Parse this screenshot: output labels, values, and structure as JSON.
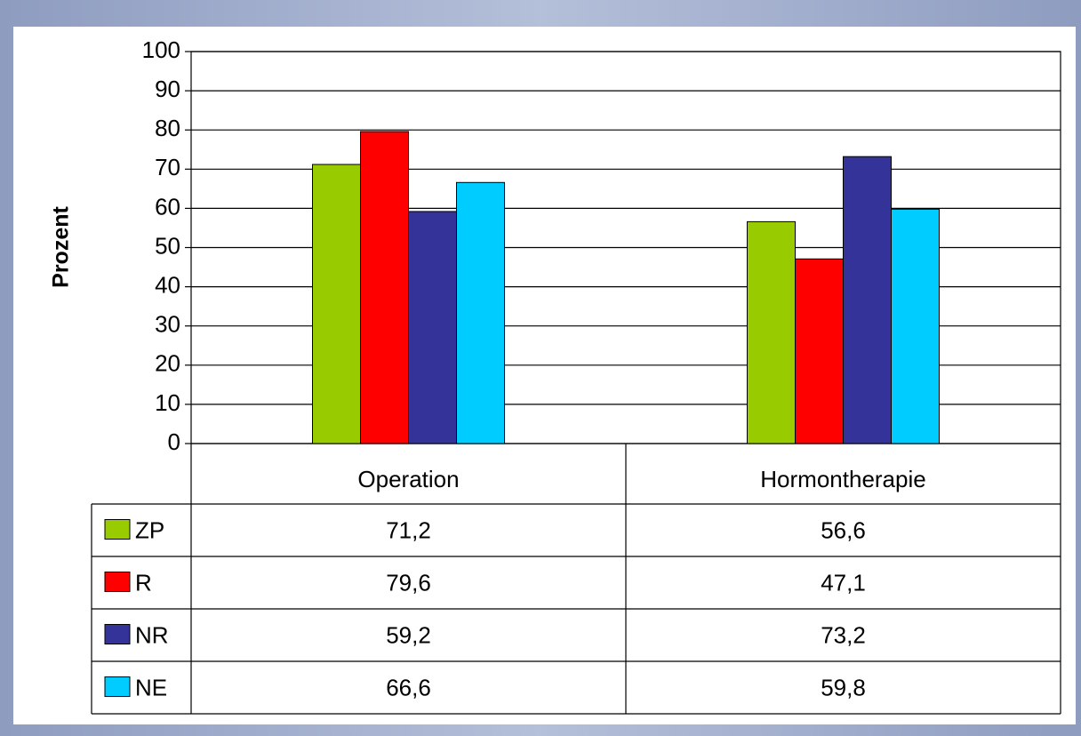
{
  "chart_data": {
    "type": "bar",
    "y_label": "Prozent",
    "categories": [
      "Operation",
      "Hormontherapie"
    ],
    "series": [
      {
        "name": "ZP",
        "color": "#99cc00",
        "values": [
          71.2,
          56.6
        ],
        "value_labels": [
          "71,2",
          "56,6"
        ]
      },
      {
        "name": "R",
        "color": "#ff0000",
        "values": [
          79.6,
          47.1
        ],
        "value_labels": [
          "79,6",
          "47,1"
        ]
      },
      {
        "name": "NR",
        "color": "#333399",
        "values": [
          59.2,
          73.2
        ],
        "value_labels": [
          "59,2",
          "73,2"
        ]
      },
      {
        "name": "NE",
        "color": "#00ccff",
        "values": [
          66.6,
          59.8
        ],
        "value_labels": [
          "66,6",
          "59,8"
        ]
      }
    ],
    "ylim": [
      0,
      100
    ],
    "yticks": [
      0,
      10,
      20,
      30,
      40,
      50,
      60,
      70,
      80,
      90,
      100
    ],
    "grid": true
  }
}
